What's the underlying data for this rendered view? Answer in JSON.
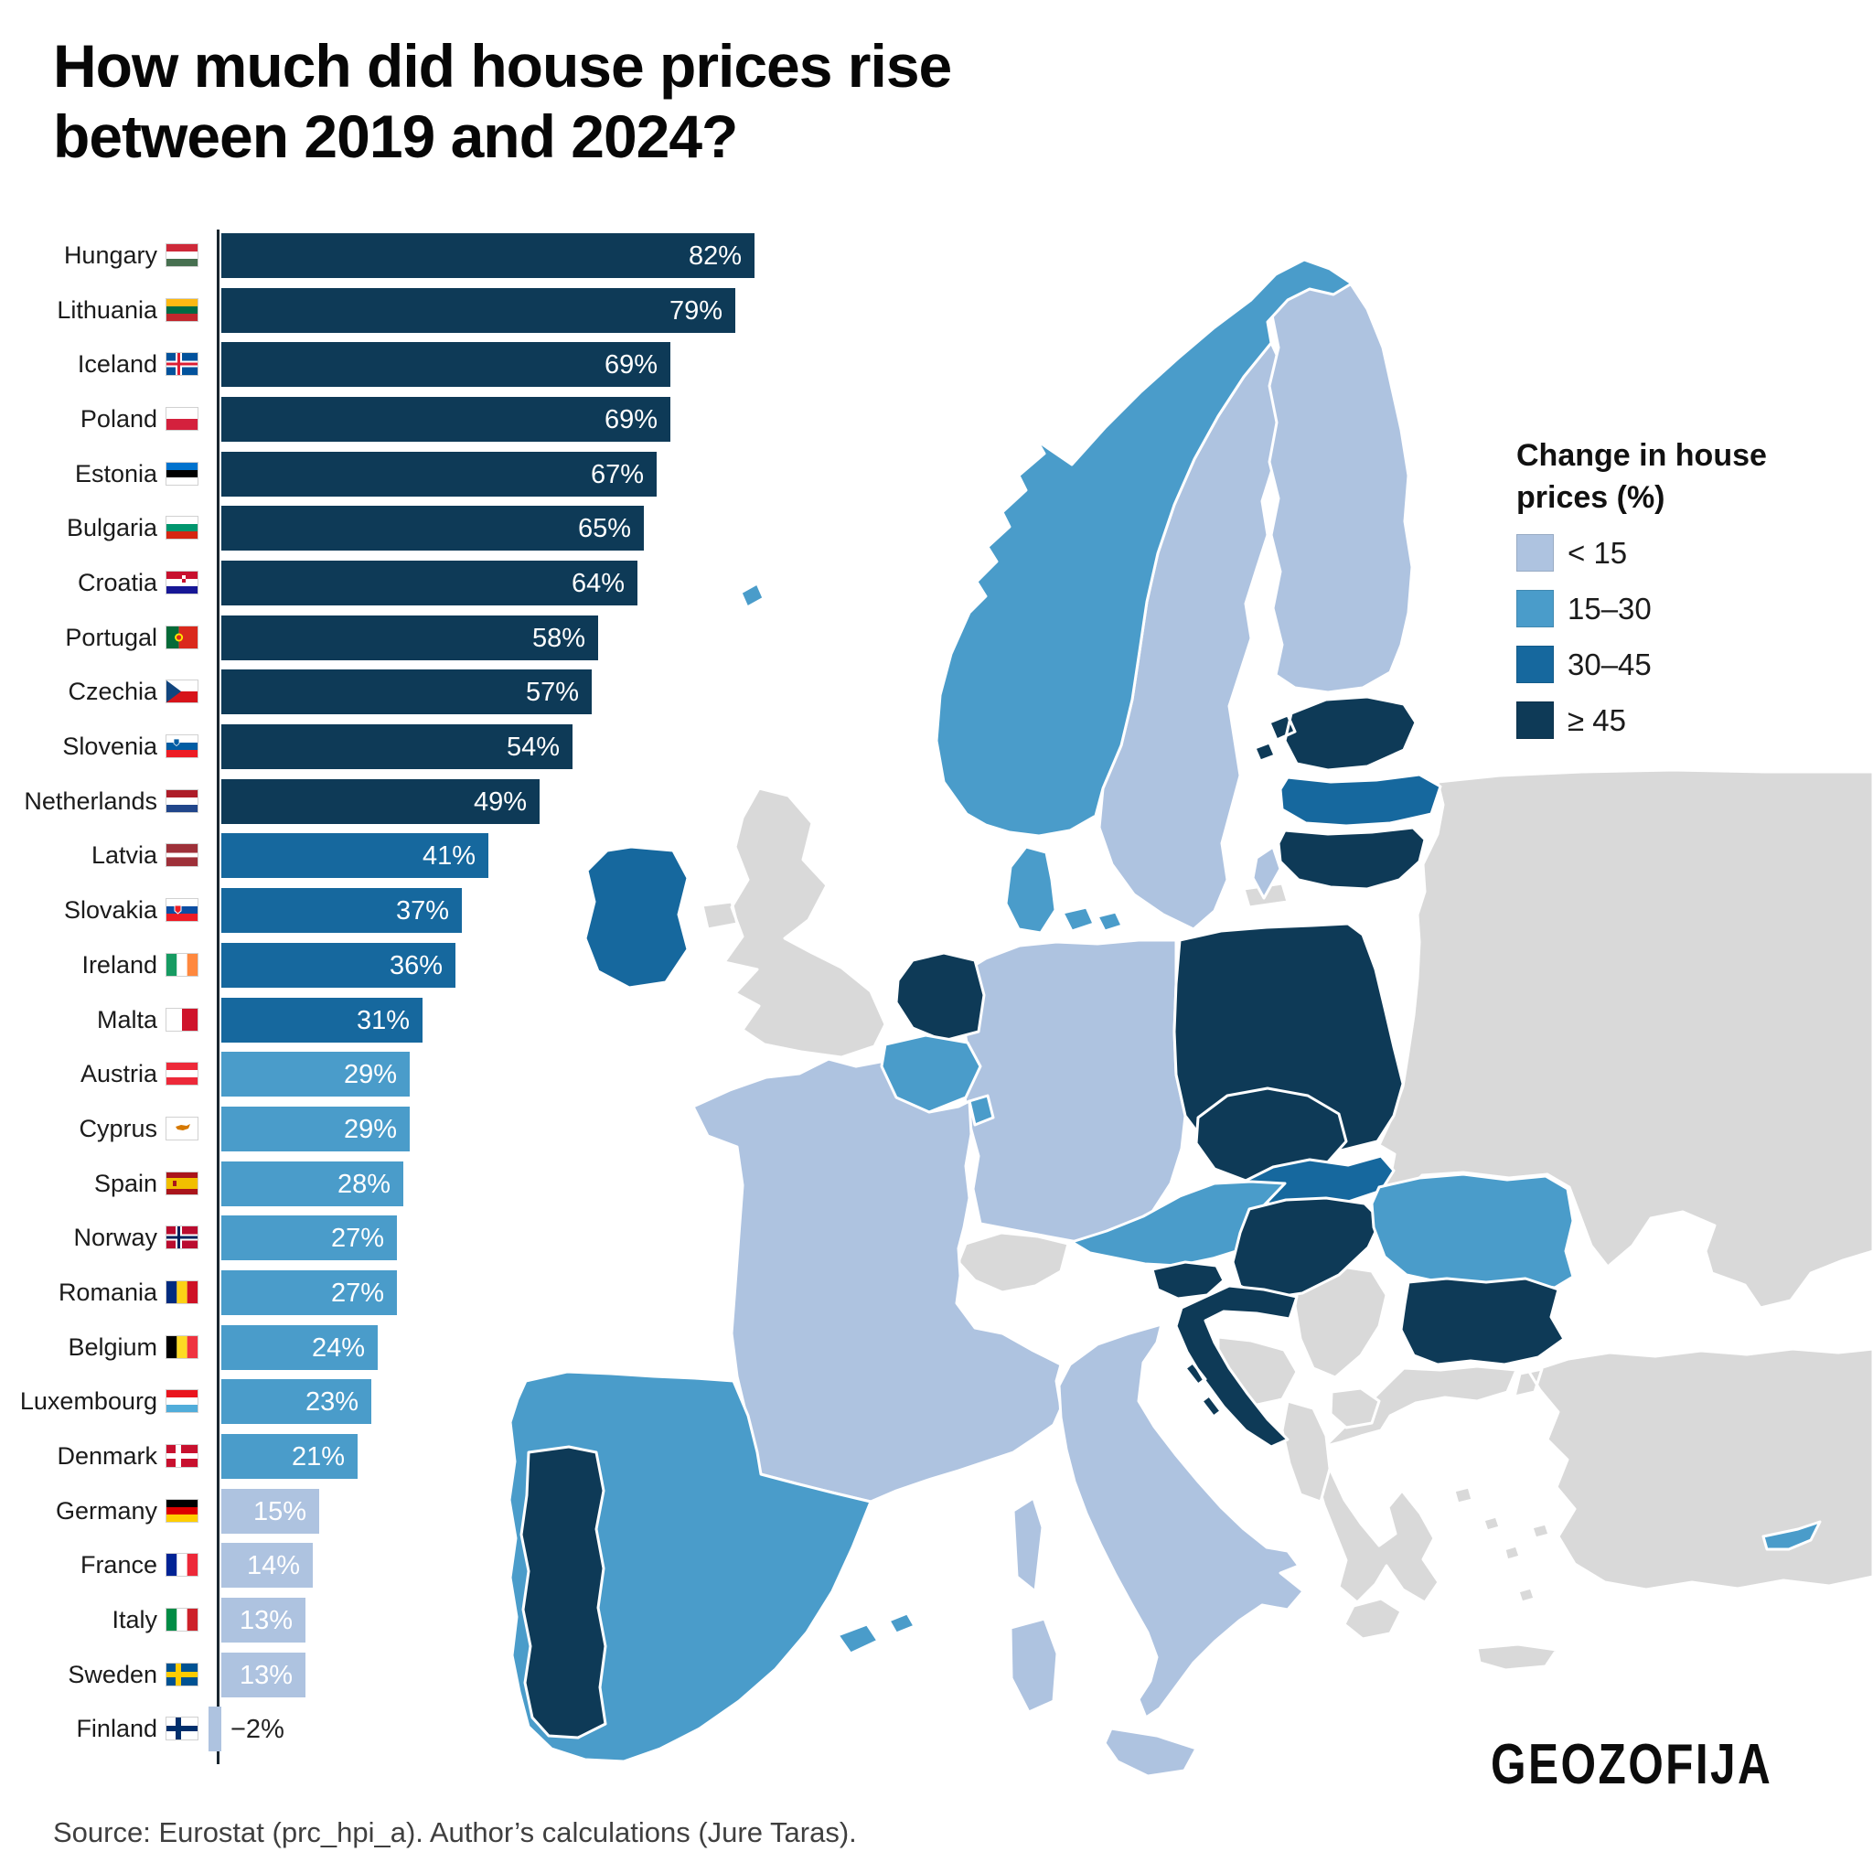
{
  "title_lines": [
    "How much did house prices rise",
    "between 2019 and 2024?"
  ],
  "source": "Source: Eurostat (prc_hpi_a). Author’s calculations (Jure Taras).",
  "logo_text": "GEOZOFIJA",
  "palette": {
    "c1": "#aec3e0",
    "c2": "#4a9cca",
    "c3": "#16689e",
    "c4": "#0e3a57",
    "nodata": "#d9d9d9",
    "sea": "#ffffff"
  },
  "legend": {
    "title_lines": [
      "Change in house",
      "prices (%)"
    ],
    "items": [
      {
        "label": "< 15",
        "cls": "c1"
      },
      {
        "label": "15–30",
        "cls": "c2"
      },
      {
        "label": "30–45",
        "cls": "c3"
      },
      {
        "label": "≥ 45",
        "cls": "c4"
      }
    ]
  },
  "chart_data": [
    {
      "type": "bar",
      "orientation": "horizontal",
      "title": "How much did house prices rise between 2019 and 2024?",
      "unit": "%",
      "xlim": [
        -2,
        82
      ],
      "categories": [
        "Hungary",
        "Lithuania",
        "Iceland",
        "Poland",
        "Estonia",
        "Bulgaria",
        "Croatia",
        "Portugal",
        "Czechia",
        "Slovenia",
        "Netherlands",
        "Latvia",
        "Slovakia",
        "Ireland",
        "Malta",
        "Austria",
        "Cyprus",
        "Spain",
        "Norway",
        "Romania",
        "Belgium",
        "Luxembourg",
        "Denmark",
        "Germany",
        "France",
        "Italy",
        "Sweden",
        "Finland"
      ],
      "values": [
        82,
        79,
        69,
        69,
        67,
        65,
        64,
        58,
        57,
        54,
        49,
        41,
        37,
        36,
        31,
        29,
        29,
        28,
        27,
        27,
        24,
        23,
        21,
        15,
        14,
        13,
        13,
        -2
      ],
      "countries": [
        {
          "name": "Hungary",
          "value": 82,
          "label": "82%",
          "cls": "c4",
          "flag": {
            "t": "h",
            "c": [
              "#ce2939",
              "#ffffff",
              "#477050"
            ]
          }
        },
        {
          "name": "Lithuania",
          "value": 79,
          "label": "79%",
          "cls": "c4",
          "flag": {
            "t": "h",
            "c": [
              "#fdb913",
              "#006a44",
              "#c1272d"
            ]
          }
        },
        {
          "name": "Iceland",
          "value": 69,
          "label": "69%",
          "cls": "c4",
          "flag": {
            "t": "n",
            "bg": "#02529c",
            "cr": "#ffffff",
            "in": "#dc1e35"
          }
        },
        {
          "name": "Poland",
          "value": 69,
          "label": "69%",
          "cls": "c4",
          "flag": {
            "t": "h",
            "c": [
              "#ffffff",
              "#d4213d"
            ]
          }
        },
        {
          "name": "Estonia",
          "value": 67,
          "label": "67%",
          "cls": "c4",
          "flag": {
            "t": "h",
            "c": [
              "#0072ce",
              "#000000",
              "#ffffff"
            ]
          }
        },
        {
          "name": "Bulgaria",
          "value": 65,
          "label": "65%",
          "cls": "c4",
          "flag": {
            "t": "h",
            "c": [
              "#ffffff",
              "#00966e",
              "#d62612"
            ]
          }
        },
        {
          "name": "Croatia",
          "value": 64,
          "label": "64%",
          "cls": "c4",
          "flag": {
            "t": "h",
            "c": [
              "#c8102e",
              "#ffffff",
              "#171796"
            ],
            "e": "croatia"
          }
        },
        {
          "name": "Portugal",
          "value": 58,
          "label": "58%",
          "cls": "c4",
          "flag": {
            "t": "v",
            "c": [
              "#046a38",
              "#da291c"
            ],
            "w": [
              40,
              60
            ],
            "e": "portugal"
          }
        },
        {
          "name": "Czechia",
          "value": 57,
          "label": "57%",
          "cls": "c4",
          "flag": {
            "t": "cz",
            "c": [
              "#ffffff",
              "#d7141a"
            ],
            "tri": "#11457e"
          }
        },
        {
          "name": "Slovenia",
          "value": 54,
          "label": "54%",
          "cls": "c4",
          "flag": {
            "t": "h",
            "c": [
              "#ffffff",
              "#005da4",
              "#ed1c24"
            ],
            "e": "slovenia"
          }
        },
        {
          "name": "Netherlands",
          "value": 49,
          "label": "49%",
          "cls": "c4",
          "flag": {
            "t": "h",
            "c": [
              "#ae1c28",
              "#ffffff",
              "#21468b"
            ]
          }
        },
        {
          "name": "Latvia",
          "value": 41,
          "label": "41%",
          "cls": "c3",
          "flag": {
            "t": "h",
            "c": [
              "#9e3039",
              "#ffffff",
              "#9e3039"
            ],
            "w": [
              40,
              20,
              40
            ]
          }
        },
        {
          "name": "Slovakia",
          "value": 37,
          "label": "37%",
          "cls": "c3",
          "flag": {
            "t": "h",
            "c": [
              "#ffffff",
              "#0b4ea2",
              "#ee1c25"
            ],
            "e": "slovakia"
          }
        },
        {
          "name": "Ireland",
          "value": 36,
          "label": "36%",
          "cls": "c3",
          "flag": {
            "t": "v",
            "c": [
              "#169b62",
              "#ffffff",
              "#ff883e"
            ]
          }
        },
        {
          "name": "Malta",
          "value": 31,
          "label": "31%",
          "cls": "c3",
          "flag": {
            "t": "v",
            "c": [
              "#ffffff",
              "#cf142b"
            ]
          }
        },
        {
          "name": "Austria",
          "value": 29,
          "label": "29%",
          "cls": "c2",
          "flag": {
            "t": "h",
            "c": [
              "#ed2939",
              "#ffffff",
              "#ed2939"
            ]
          }
        },
        {
          "name": "Cyprus",
          "value": 29,
          "label": "29%",
          "cls": "c2",
          "flag": {
            "t": "cy",
            "bg": "#ffffff",
            "isle": "#d57800"
          }
        },
        {
          "name": "Spain",
          "value": 28,
          "label": "28%",
          "cls": "c2",
          "flag": {
            "t": "h",
            "c": [
              "#aa151b",
              "#f1bf00",
              "#aa151b"
            ],
            "w": [
              25,
              50,
              25
            ],
            "e": "spain"
          }
        },
        {
          "name": "Norway",
          "value": 27,
          "label": "27%",
          "cls": "c2",
          "flag": {
            "t": "n",
            "bg": "#ba0c2f",
            "cr": "#ffffff",
            "in": "#00205b"
          }
        },
        {
          "name": "Romania",
          "value": 27,
          "label": "27%",
          "cls": "c2",
          "flag": {
            "t": "v",
            "c": [
              "#002b7f",
              "#fcd116",
              "#ce1126"
            ]
          }
        },
        {
          "name": "Belgium",
          "value": 24,
          "label": "24%",
          "cls": "c2",
          "flag": {
            "t": "v",
            "c": [
              "#000000",
              "#fdda24",
              "#ef3340"
            ]
          }
        },
        {
          "name": "Luxembourg",
          "value": 23,
          "label": "23%",
          "cls": "c2",
          "flag": {
            "t": "h",
            "c": [
              "#ea141d",
              "#ffffff",
              "#51adda"
            ]
          }
        },
        {
          "name": "Denmark",
          "value": 21,
          "label": "21%",
          "cls": "c2",
          "flag": {
            "t": "n",
            "bg": "#c8102e",
            "cr": "#ffffff"
          }
        },
        {
          "name": "Germany",
          "value": 15,
          "label": "15%",
          "cls": "c1",
          "flag": {
            "t": "h",
            "c": [
              "#000000",
              "#dd0000",
              "#ffce00"
            ]
          }
        },
        {
          "name": "France",
          "value": 14,
          "label": "14%",
          "cls": "c1",
          "flag": {
            "t": "v",
            "c": [
              "#002395",
              "#ffffff",
              "#ed2939"
            ]
          }
        },
        {
          "name": "Italy",
          "value": 13,
          "label": "13%",
          "cls": "c1",
          "flag": {
            "t": "v",
            "c": [
              "#008c45",
              "#ffffff",
              "#cd212a"
            ]
          }
        },
        {
          "name": "Sweden",
          "value": 13,
          "label": "13%",
          "cls": "c1",
          "flag": {
            "t": "n",
            "bg": "#005293",
            "cr": "#fecb00"
          }
        },
        {
          "name": "Finland",
          "value": -2,
          "label": "−2%",
          "cls": "c1",
          "flag": {
            "t": "n",
            "bg": "#ffffff",
            "cr": "#002f6c"
          }
        }
      ]
    },
    {
      "type": "choropleth",
      "region": "Europe",
      "legend_title": "Change in house prices (%)",
      "classes": [
        "< 15",
        "15–30",
        "30–45",
        "≥ 45"
      ],
      "countries": {
        "norway": "c2",
        "sweden": "c1",
        "finland": "c1",
        "estonia": "c4",
        "latvia": "c3",
        "lithuania": "c4",
        "russia": "nodata",
        "denmark": "c2",
        "uk": "nodata",
        "ireland": "c3",
        "netherlands": "c4",
        "belgium": "c2",
        "luxembourg": "c2",
        "germany": "c1",
        "france": "c1",
        "switzerland": "nodata",
        "austria": "c2",
        "czechia": "c4",
        "poland": "c4",
        "slovakia": "c3",
        "hungary": "c4",
        "slovenia": "c4",
        "croatia": "c4",
        "bosnia": "nodata",
        "serbia": "nodata",
        "montenegro_albania": "nodata",
        "north_macedonia": "nodata",
        "greece": "nodata",
        "romania": "c2",
        "bulgaria": "c4",
        "turkey": "nodata",
        "cyprus": "c2",
        "spain": "c2",
        "portugal": "c4",
        "italy": "c1"
      }
    }
  ]
}
